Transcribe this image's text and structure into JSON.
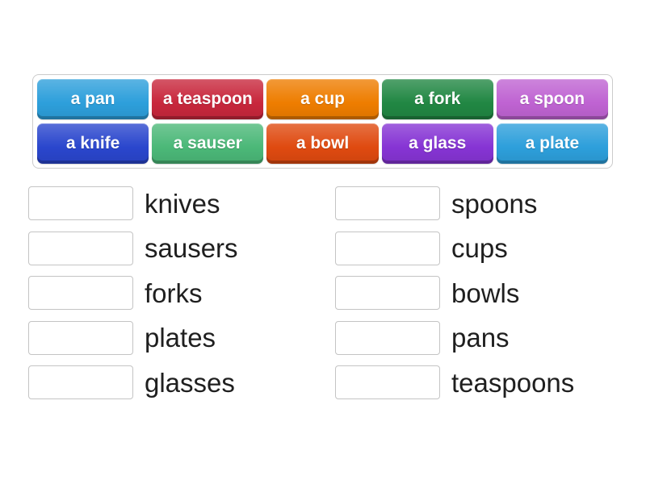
{
  "colors": {
    "page_bg": "#ffffff",
    "board_bg": "#ffffff",
    "board_border": "#cbcbcb",
    "slot_bg": "#ffffff",
    "slot_border": "#c4c4c4",
    "label_text": "#1f1f1f",
    "tile_text": "#ffffff"
  },
  "word_bank": {
    "tiles": [
      {
        "label": "a pan",
        "color": "#2d9fdb"
      },
      {
        "label": "a teaspoon",
        "color": "#c8273c"
      },
      {
        "label": "a cup",
        "color": "#ee7d00"
      },
      {
        "label": "a fork",
        "color": "#218743"
      },
      {
        "label": "a spoon",
        "color": "#bf63d2"
      },
      {
        "label": "a knife",
        "color": "#2a46cd"
      },
      {
        "label": "a sauser",
        "color": "#4bb878"
      },
      {
        "label": "a bowl",
        "color": "#df4a10"
      },
      {
        "label": "a glass",
        "color": "#8634d4"
      },
      {
        "label": "a plate",
        "color": "#2d9fdb"
      }
    ]
  },
  "answers": {
    "left": [
      "knives",
      "sausers",
      "forks",
      "plates",
      "glasses"
    ],
    "right": [
      "spoons",
      "cups",
      "bowls",
      "pans",
      "teaspoons"
    ]
  }
}
